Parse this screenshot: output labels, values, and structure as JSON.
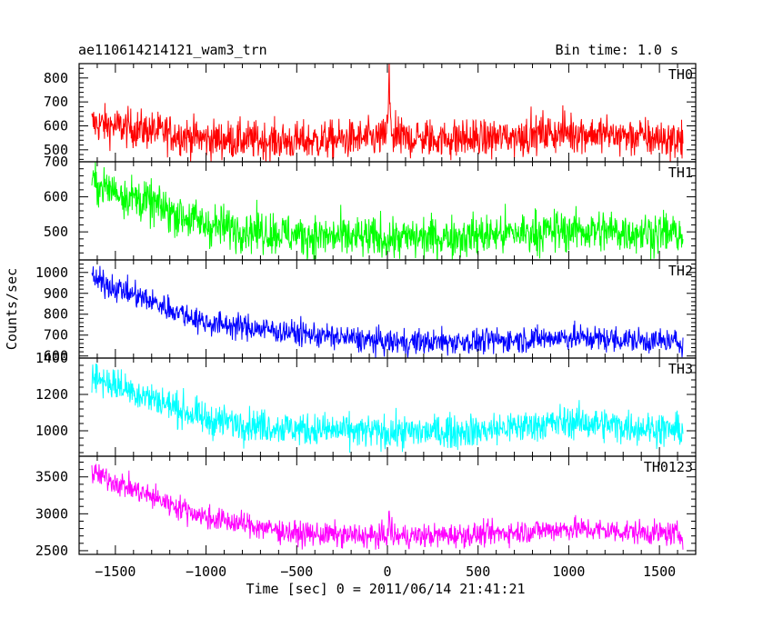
{
  "header": {
    "title": "ae110614214121_wam3_trn",
    "bin_time": "Bin time: 1.0 s"
  },
  "chart_data": {
    "type": "line",
    "title": "ae110614214121_wam3_trn",
    "xlabel": "Time [sec] 0 = 2011/06/14 21:41:21",
    "ylabel": "Counts/sec",
    "xlim": [
      -1700,
      1700
    ],
    "x_ticks": [
      -1500,
      -1000,
      -500,
      0,
      500,
      1000,
      1500
    ],
    "x_tick_labels": [
      "−1500",
      "−1000",
      "−500",
      "0",
      "500",
      "1000",
      "1500"
    ],
    "x_range_data": [
      -1630,
      1630
    ],
    "grid": false,
    "panels": [
      {
        "name": "TH0",
        "color": "#ff0000",
        "ylim": [
          450,
          860
        ],
        "y_ticks": [
          500,
          600,
          700,
          800
        ],
        "baseline": [
          [
            -1630,
            610
          ],
          [
            -1300,
            580
          ],
          [
            -1000,
            545
          ],
          [
            -500,
            535
          ],
          [
            0,
            550
          ],
          [
            500,
            545
          ],
          [
            1000,
            575
          ],
          [
            1630,
            540
          ]
        ],
        "noise": 40,
        "spike": {
          "x": 10,
          "peak": 860,
          "width": 25
        }
      },
      {
        "name": "TH1",
        "color": "#00ff00",
        "ylim": [
          420,
          700
        ],
        "y_ticks": [
          500,
          600,
          700
        ],
        "baseline": [
          [
            -1630,
            640
          ],
          [
            -1300,
            580
          ],
          [
            -1000,
            520
          ],
          [
            -500,
            490
          ],
          [
            0,
            480
          ],
          [
            500,
            490
          ],
          [
            1000,
            505
          ],
          [
            1630,
            495
          ]
        ],
        "noise": 30
      },
      {
        "name": "TH2",
        "color": "#0000ff",
        "ylim": [
          590,
          1060
        ],
        "y_ticks": [
          600,
          700,
          800,
          900,
          1000
        ],
        "baseline": [
          [
            -1630,
            970
          ],
          [
            -1300,
            860
          ],
          [
            -1000,
            760
          ],
          [
            -500,
            710
          ],
          [
            0,
            665
          ],
          [
            500,
            670
          ],
          [
            1000,
            690
          ],
          [
            1630,
            665
          ]
        ],
        "noise": 30
      },
      {
        "name": "TH3",
        "color": "#00ffff",
        "ylim": [
          860,
          1400
        ],
        "y_ticks": [
          1000,
          1200,
          1400
        ],
        "baseline": [
          [
            -1630,
            1300
          ],
          [
            -1300,
            1180
          ],
          [
            -1000,
            1060
          ],
          [
            -500,
            1010
          ],
          [
            0,
            990
          ],
          [
            500,
            1000
          ],
          [
            1000,
            1050
          ],
          [
            1630,
            1000
          ]
        ],
        "noise": 45
      },
      {
        "name": "TH0123",
        "color": "#ff00ff",
        "ylim": [
          2450,
          3780
        ],
        "y_ticks": [
          2500,
          3000,
          3500
        ],
        "baseline": [
          [
            -1630,
            3560
          ],
          [
            -1300,
            3230
          ],
          [
            -1000,
            2950
          ],
          [
            -500,
            2730
          ],
          [
            0,
            2690
          ],
          [
            500,
            2720
          ],
          [
            1000,
            2800
          ],
          [
            1630,
            2720
          ]
        ],
        "noise": 80,
        "spike": {
          "x": 10,
          "peak": 3050,
          "width": 25
        }
      }
    ]
  }
}
